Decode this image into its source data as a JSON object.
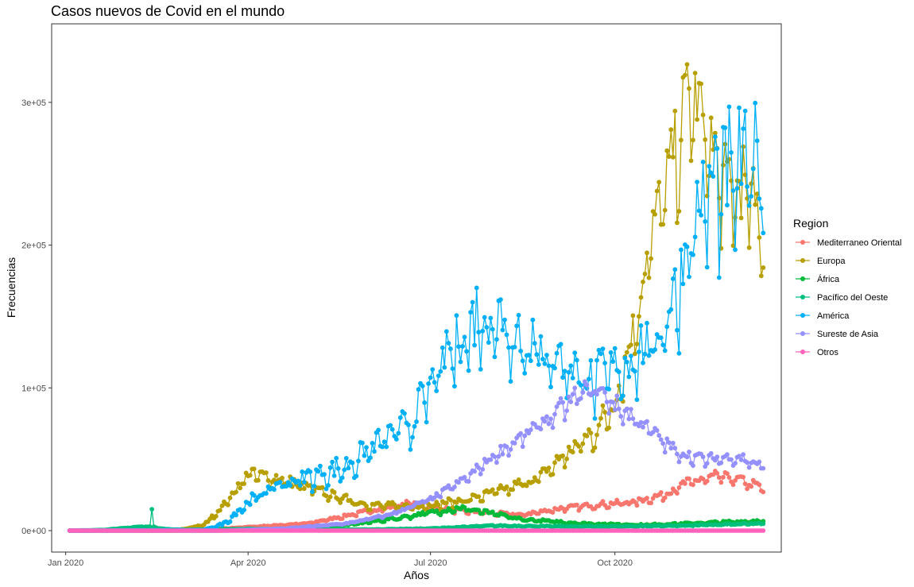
{
  "chart_data": {
    "type": "line",
    "title": "Casos nuevos de Covid en el mundo",
    "xlabel": "Años",
    "ylabel": "Frecuencias",
    "x_start": "2020-01-03",
    "x_end": "2020-12-14",
    "xlim": [
      "2020-01-03",
      "2020-12-14"
    ],
    "ylim": [
      0,
      340000
    ],
    "x_ticks": [
      {
        "date": "2020-01-01",
        "label": "Jan 2020"
      },
      {
        "date": "2020-04-01",
        "label": "Apr 2020"
      },
      {
        "date": "2020-07-01",
        "label": "Jul 2020"
      },
      {
        "date": "2020-10-01",
        "label": "Oct 2020"
      }
    ],
    "y_ticks": [
      {
        "value": 0,
        "label": "0e+00"
      },
      {
        "value": 100000,
        "label": "1e+05"
      },
      {
        "value": 200000,
        "label": "2e+05"
      },
      {
        "value": 300000,
        "label": "3e+05"
      }
    ],
    "grid": false,
    "legend_position": "right",
    "legend_title": "Region",
    "series": [
      {
        "name": "Mediterraneo Oriental",
        "color": "#F8766D",
        "anchors": [
          [
            "2020-01-03",
            0
          ],
          [
            "2020-02-20",
            0
          ],
          [
            "2020-03-15",
            1000
          ],
          [
            "2020-04-01",
            2500
          ],
          [
            "2020-05-01",
            5000
          ],
          [
            "2020-06-01",
            14000
          ],
          [
            "2020-06-20",
            19000
          ],
          [
            "2020-07-15",
            14000
          ],
          [
            "2020-08-15",
            11000
          ],
          [
            "2020-09-01",
            15000
          ],
          [
            "2020-09-20",
            18000
          ],
          [
            "2020-10-10",
            20000
          ],
          [
            "2020-10-25",
            25000
          ],
          [
            "2020-11-05",
            33000
          ],
          [
            "2020-11-20",
            38000
          ],
          [
            "2020-12-01",
            36000
          ],
          [
            "2020-12-14",
            30000
          ]
        ],
        "noise": 0.08
      },
      {
        "name": "Europa",
        "color": "#B79F00",
        "anchors": [
          [
            "2020-01-03",
            0
          ],
          [
            "2020-02-25",
            0
          ],
          [
            "2020-03-10",
            4000
          ],
          [
            "2020-03-20",
            18000
          ],
          [
            "2020-04-01",
            40000
          ],
          [
            "2020-04-15",
            37000
          ],
          [
            "2020-05-01",
            30000
          ],
          [
            "2020-05-15",
            24000
          ],
          [
            "2020-06-01",
            18000
          ],
          [
            "2020-06-20",
            17000
          ],
          [
            "2020-07-01",
            18000
          ],
          [
            "2020-07-20",
            22000
          ],
          [
            "2020-08-10",
            30000
          ],
          [
            "2020-08-25",
            38000
          ],
          [
            "2020-09-05",
            52000
          ],
          [
            "2020-09-20",
            68000
          ],
          [
            "2020-10-01",
            90000
          ],
          [
            "2020-10-10",
            140000
          ],
          [
            "2020-10-20",
            210000
          ],
          [
            "2020-10-30",
            260000
          ],
          [
            "2020-11-08",
            310000
          ],
          [
            "2020-11-15",
            280000
          ],
          [
            "2020-11-25",
            240000
          ],
          [
            "2020-12-05",
            240000
          ],
          [
            "2020-12-14",
            210000
          ]
        ],
        "noise": 0.1
      },
      {
        "name": "África",
        "color": "#00BA38",
        "anchors": [
          [
            "2020-01-03",
            0
          ],
          [
            "2020-03-15",
            0
          ],
          [
            "2020-04-15",
            1000
          ],
          [
            "2020-05-15",
            3000
          ],
          [
            "2020-06-15",
            9000
          ],
          [
            "2020-07-15",
            16000
          ],
          [
            "2020-07-25",
            14000
          ],
          [
            "2020-08-15",
            8000
          ],
          [
            "2020-09-15",
            5000
          ],
          [
            "2020-10-15",
            4000
          ],
          [
            "2020-11-15",
            5500
          ],
          [
            "2020-12-14",
            7000
          ]
        ],
        "noise": 0.1
      },
      {
        "name": "Pacífico del Oeste",
        "color": "#00BF7D",
        "anchors": [
          [
            "2020-01-03",
            0
          ],
          [
            "2020-01-20",
            500
          ],
          [
            "2020-02-05",
            2500
          ],
          [
            "2020-02-12",
            3000
          ],
          [
            "2020-02-20",
            1000
          ],
          [
            "2020-03-01",
            500
          ],
          [
            "2020-04-01",
            1200
          ],
          [
            "2020-05-01",
            800
          ],
          [
            "2020-06-01",
            800
          ],
          [
            "2020-07-01",
            1500
          ],
          [
            "2020-08-01",
            3500
          ],
          [
            "2020-09-01",
            3000
          ],
          [
            "2020-10-01",
            3000
          ],
          [
            "2020-11-01",
            3500
          ],
          [
            "2020-12-14",
            5000
          ]
        ],
        "noise": 0.08,
        "spikes": [
          [
            "2020-02-13",
            15000
          ]
        ]
      },
      {
        "name": "América",
        "color": "#00B0F6",
        "anchors": [
          [
            "2020-01-03",
            0
          ],
          [
            "2020-03-10",
            500
          ],
          [
            "2020-03-20",
            5000
          ],
          [
            "2020-04-01",
            20000
          ],
          [
            "2020-04-15",
            32000
          ],
          [
            "2020-05-01",
            38000
          ],
          [
            "2020-05-20",
            45000
          ],
          [
            "2020-06-01",
            58000
          ],
          [
            "2020-06-20",
            75000
          ],
          [
            "2020-07-01",
            100000
          ],
          [
            "2020-07-10",
            125000
          ],
          [
            "2020-07-25",
            150000
          ],
          [
            "2020-08-05",
            150000
          ],
          [
            "2020-08-20",
            130000
          ],
          [
            "2020-09-05",
            120000
          ],
          [
            "2020-09-20",
            105000
          ],
          [
            "2020-10-01",
            115000
          ],
          [
            "2020-10-20",
            130000
          ],
          [
            "2020-11-01",
            170000
          ],
          [
            "2020-11-10",
            220000
          ],
          [
            "2020-11-20",
            245000
          ],
          [
            "2020-12-01",
            250000
          ],
          [
            "2020-12-14",
            270000
          ]
        ],
        "noise": 0.14
      },
      {
        "name": "Sureste de Asia",
        "color": "#9590FF",
        "anchors": [
          [
            "2020-01-03",
            0
          ],
          [
            "2020-03-20",
            0
          ],
          [
            "2020-04-20",
            1500
          ],
          [
            "2020-05-20",
            5000
          ],
          [
            "2020-06-10",
            11000
          ],
          [
            "2020-07-01",
            22000
          ],
          [
            "2020-07-20",
            38000
          ],
          [
            "2020-08-01",
            52000
          ],
          [
            "2020-08-15",
            65000
          ],
          [
            "2020-09-01",
            82000
          ],
          [
            "2020-09-15",
            97000
          ],
          [
            "2020-09-22",
            100000
          ],
          [
            "2020-10-01",
            88000
          ],
          [
            "2020-10-15",
            75000
          ],
          [
            "2020-11-01",
            55000
          ],
          [
            "2020-11-15",
            50000
          ],
          [
            "2020-12-01",
            52000
          ],
          [
            "2020-12-14",
            45000
          ]
        ],
        "noise": 0.06
      },
      {
        "name": "Otros",
        "color": "#FF62BC",
        "anchors": [
          [
            "2020-01-03",
            0
          ],
          [
            "2020-12-14",
            0
          ]
        ],
        "noise": 0
      }
    ]
  }
}
